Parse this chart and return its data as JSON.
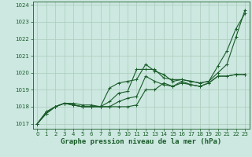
{
  "title": "Graphe pression niveau de la mer (hPa)",
  "bg_color": "#cce8e0",
  "grid_color": "#aaccbb",
  "line_color": "#1a5c2a",
  "xlim": [
    -0.5,
    23.5
  ],
  "ylim": [
    1016.7,
    1024.2
  ],
  "xticks": [
    0,
    1,
    2,
    3,
    4,
    5,
    6,
    7,
    8,
    9,
    10,
    11,
    12,
    13,
    14,
    15,
    16,
    17,
    18,
    19,
    20,
    21,
    22,
    23
  ],
  "yticks": [
    1017,
    1018,
    1019,
    1020,
    1021,
    1022,
    1023,
    1024
  ],
  "series": [
    [
      1017.0,
      1017.6,
      1018.0,
      1018.2,
      1018.1,
      1018.0,
      1018.0,
      1018.0,
      1019.1,
      1019.4,
      1019.5,
      1019.6,
      1020.5,
      1020.1,
      1019.9,
      1019.5,
      1019.6,
      1019.5,
      1019.4,
      1019.5,
      1020.4,
      1021.3,
      1022.6,
      1023.5
    ],
    [
      1017.0,
      1017.6,
      1018.0,
      1018.2,
      1018.1,
      1018.0,
      1018.0,
      1018.0,
      1018.0,
      1018.0,
      1018.0,
      1018.1,
      1019.0,
      1019.0,
      1019.4,
      1019.2,
      1019.4,
      1019.3,
      1019.2,
      1019.4,
      1019.8,
      1019.8,
      1019.9,
      1019.9
    ],
    [
      1017.0,
      1017.7,
      1018.0,
      1018.2,
      1018.2,
      1018.1,
      1018.1,
      1018.0,
      1018.3,
      1018.8,
      1018.9,
      1020.2,
      1020.2,
      1020.2,
      1019.7,
      1019.6,
      1019.6,
      1019.5,
      1019.4,
      1019.5,
      1020.0,
      1020.5,
      1022.1,
      1023.7
    ],
    [
      1017.0,
      1017.7,
      1018.0,
      1018.2,
      1018.1,
      1018.0,
      1018.0,
      1018.0,
      1018.0,
      1018.3,
      1018.5,
      1018.6,
      1019.8,
      1019.5,
      1019.3,
      1019.2,
      1019.5,
      1019.3,
      1019.2,
      1019.4,
      1019.8,
      1019.8,
      1019.9,
      1019.9
    ]
  ],
  "marker": "+",
  "markersize": 3,
  "linewidth": 0.8,
  "tick_fontsize": 5,
  "xlabel_fontsize": 6.5,
  "figsize": [
    3.2,
    2.0
  ],
  "dpi": 100
}
